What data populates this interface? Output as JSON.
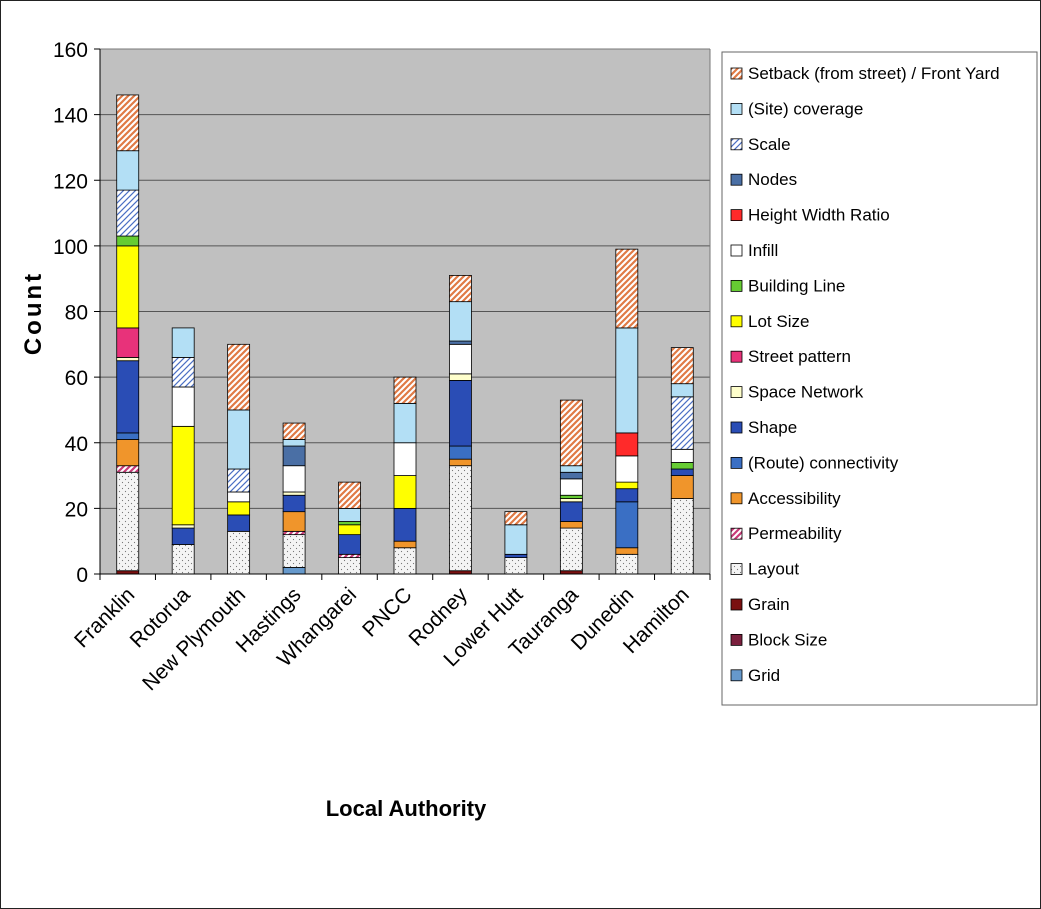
{
  "chart_data": {
    "type": "bar",
    "stacked": true,
    "title": "",
    "xlabel": "Local Authority",
    "ylabel": "Count",
    "ylim": [
      0,
      160
    ],
    "yticks": [
      0,
      20,
      40,
      60,
      80,
      100,
      120,
      140,
      160
    ],
    "grid": true,
    "legend_position": "right",
    "plot_background": "#c0c0c0",
    "categories": [
      "Franklin",
      "Rotorua",
      "New Plymouth",
      "Hastings",
      "Whangarei",
      "PNCC",
      "Rodney",
      "Lower Hutt",
      "Tauranga",
      "Dunedin",
      "Hamilton"
    ],
    "series": [
      {
        "name": "Grid",
        "color": "#6699cc",
        "pattern": "solid",
        "values": [
          0,
          0,
          0,
          2,
          0,
          0,
          0,
          0,
          0,
          0,
          0
        ]
      },
      {
        "name": "Block Size",
        "color": "#7a1f3d",
        "pattern": "solid",
        "values": [
          0,
          0,
          0,
          0,
          0,
          0,
          0,
          0,
          0,
          0,
          0
        ]
      },
      {
        "name": "Grain",
        "color": "#7a1010",
        "pattern": "solid",
        "values": [
          1,
          0,
          0,
          0,
          0,
          0,
          1,
          0,
          1,
          0,
          0
        ]
      },
      {
        "name": "Layout",
        "color": "#ffffff",
        "pattern": "dots",
        "values": [
          30,
          9,
          13,
          10,
          5,
          8,
          32,
          5,
          13,
          6,
          23
        ]
      },
      {
        "name": "Permeability",
        "color": "#d63b7a",
        "pattern": "hatch",
        "values": [
          2,
          0,
          0,
          1,
          1,
          0,
          0,
          0,
          0,
          0,
          0
        ]
      },
      {
        "name": "Accessibility",
        "color": "#f0952b",
        "pattern": "solid",
        "values": [
          8,
          0,
          0,
          6,
          0,
          2,
          2,
          0,
          2,
          2,
          7
        ]
      },
      {
        "name": "(Route) connectivity",
        "color": "#3a6fc4",
        "pattern": "solid",
        "values": [
          2,
          0,
          0,
          0,
          0,
          0,
          4,
          0,
          0,
          14,
          0
        ]
      },
      {
        "name": "Shape",
        "color": "#2a4db5",
        "pattern": "solid",
        "values": [
          22,
          5,
          5,
          5,
          6,
          10,
          20,
          1,
          6,
          4,
          2
        ]
      },
      {
        "name": "Space Network",
        "color": "#ffffcc",
        "pattern": "solid",
        "values": [
          1,
          1,
          0,
          1,
          0,
          0,
          2,
          0,
          1,
          0,
          0
        ]
      },
      {
        "name": "Street pattern",
        "color": "#e8327a",
        "pattern": "solid",
        "values": [
          9,
          0,
          0,
          0,
          0,
          0,
          0,
          0,
          0,
          0,
          0
        ]
      },
      {
        "name": "Lot Size",
        "color": "#ffff00",
        "pattern": "solid",
        "values": [
          25,
          30,
          4,
          0,
          3,
          10,
          0,
          0,
          0,
          2,
          0
        ]
      },
      {
        "name": "Building Line",
        "color": "#66cc33",
        "pattern": "solid",
        "values": [
          3,
          0,
          0,
          0,
          1,
          0,
          0,
          0,
          1,
          0,
          2
        ]
      },
      {
        "name": "Infill",
        "color": "#ffffff",
        "pattern": "solid",
        "values": [
          0,
          12,
          3,
          8,
          0,
          10,
          9,
          0,
          5,
          8,
          4
        ]
      },
      {
        "name": "Height Width Ratio",
        "color": "#ff2a2a",
        "pattern": "solid",
        "values": [
          0,
          0,
          0,
          0,
          0,
          0,
          0,
          0,
          0,
          7,
          0
        ]
      },
      {
        "name": "Nodes",
        "color": "#4a6fa5",
        "pattern": "solid",
        "values": [
          0,
          0,
          0,
          6,
          0,
          0,
          1,
          0,
          2,
          0,
          0
        ]
      },
      {
        "name": "Scale",
        "color": "#b8c8f0",
        "pattern": "diag",
        "values": [
          14,
          9,
          7,
          0,
          0,
          0,
          0,
          0,
          0,
          0,
          16
        ]
      },
      {
        "name": "(Site) coverage",
        "color": "#b3dff5",
        "pattern": "solid",
        "values": [
          12,
          9,
          18,
          2,
          4,
          12,
          12,
          9,
          2,
          32,
          4
        ]
      },
      {
        "name": "Setback (from street) / Front Yard",
        "color": "#f5c6a3",
        "pattern": "hatch",
        "values": [
          17,
          0,
          20,
          5,
          8,
          8,
          8,
          4,
          20,
          24,
          11
        ]
      }
    ]
  }
}
